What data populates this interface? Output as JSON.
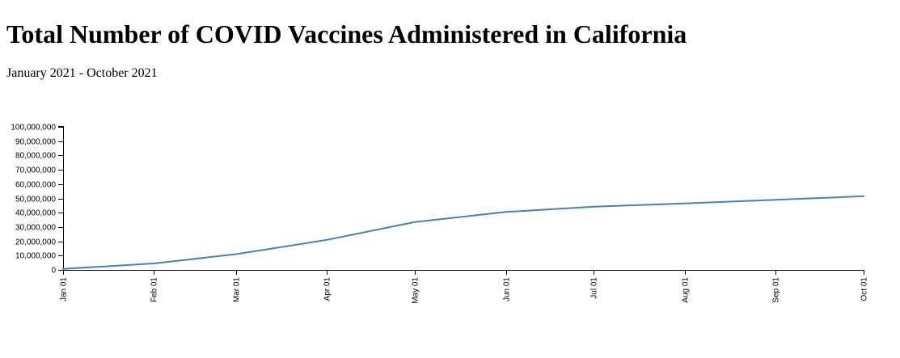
{
  "page": {
    "title": "Total Number of COVID Vaccines Administered in California",
    "subtitle": "January 2021 - October 2021"
  },
  "chart_data": {
    "type": "line",
    "title": "Total Number of COVID Vaccines Administered in California",
    "subtitle": "January 2021 - October 2021",
    "xlabel": "",
    "ylabel": "",
    "x_type": "date",
    "xlim": [
      "2021-01-01",
      "2021-10-01"
    ],
    "ylim": [
      0,
      100000000
    ],
    "y_ticks": [
      0,
      10000000,
      20000000,
      30000000,
      40000000,
      50000000,
      60000000,
      70000000,
      80000000,
      90000000,
      100000000
    ],
    "y_tick_labels": [
      "0",
      "10,000,000",
      "20,000,000",
      "30,000,000",
      "40,000,000",
      "50,000,000",
      "60,000,000",
      "70,000,000",
      "80,000,000",
      "90,000,000",
      "100,000,000"
    ],
    "x_ticks": [
      "2021-01-01",
      "2021-02-01",
      "2021-03-01",
      "2021-04-01",
      "2021-05-01",
      "2021-06-01",
      "2021-07-01",
      "2021-08-01",
      "2021-09-01",
      "2021-10-01"
    ],
    "x_tick_labels": [
      "Jan 01",
      "Feb 01",
      "Mar 01",
      "Apr 01",
      "May 01",
      "Jun 01",
      "Jul 01",
      "Aug 01",
      "Sep 01",
      "Oct 01"
    ],
    "grid": false,
    "line_color": "#4682b4",
    "series": [
      {
        "x": [
          "2021-01-01",
          "2021-02-01",
          "2021-03-01",
          "2021-04-01",
          "2021-05-01",
          "2021-06-01",
          "2021-07-01",
          "2021-08-01",
          "2021-09-01",
          "2021-10-01"
        ],
        "values": [
          700000,
          4500000,
          11000000,
          21000000,
          33500000,
          40500000,
          44200000,
          46500000,
          49000000,
          51500000
        ]
      }
    ]
  }
}
